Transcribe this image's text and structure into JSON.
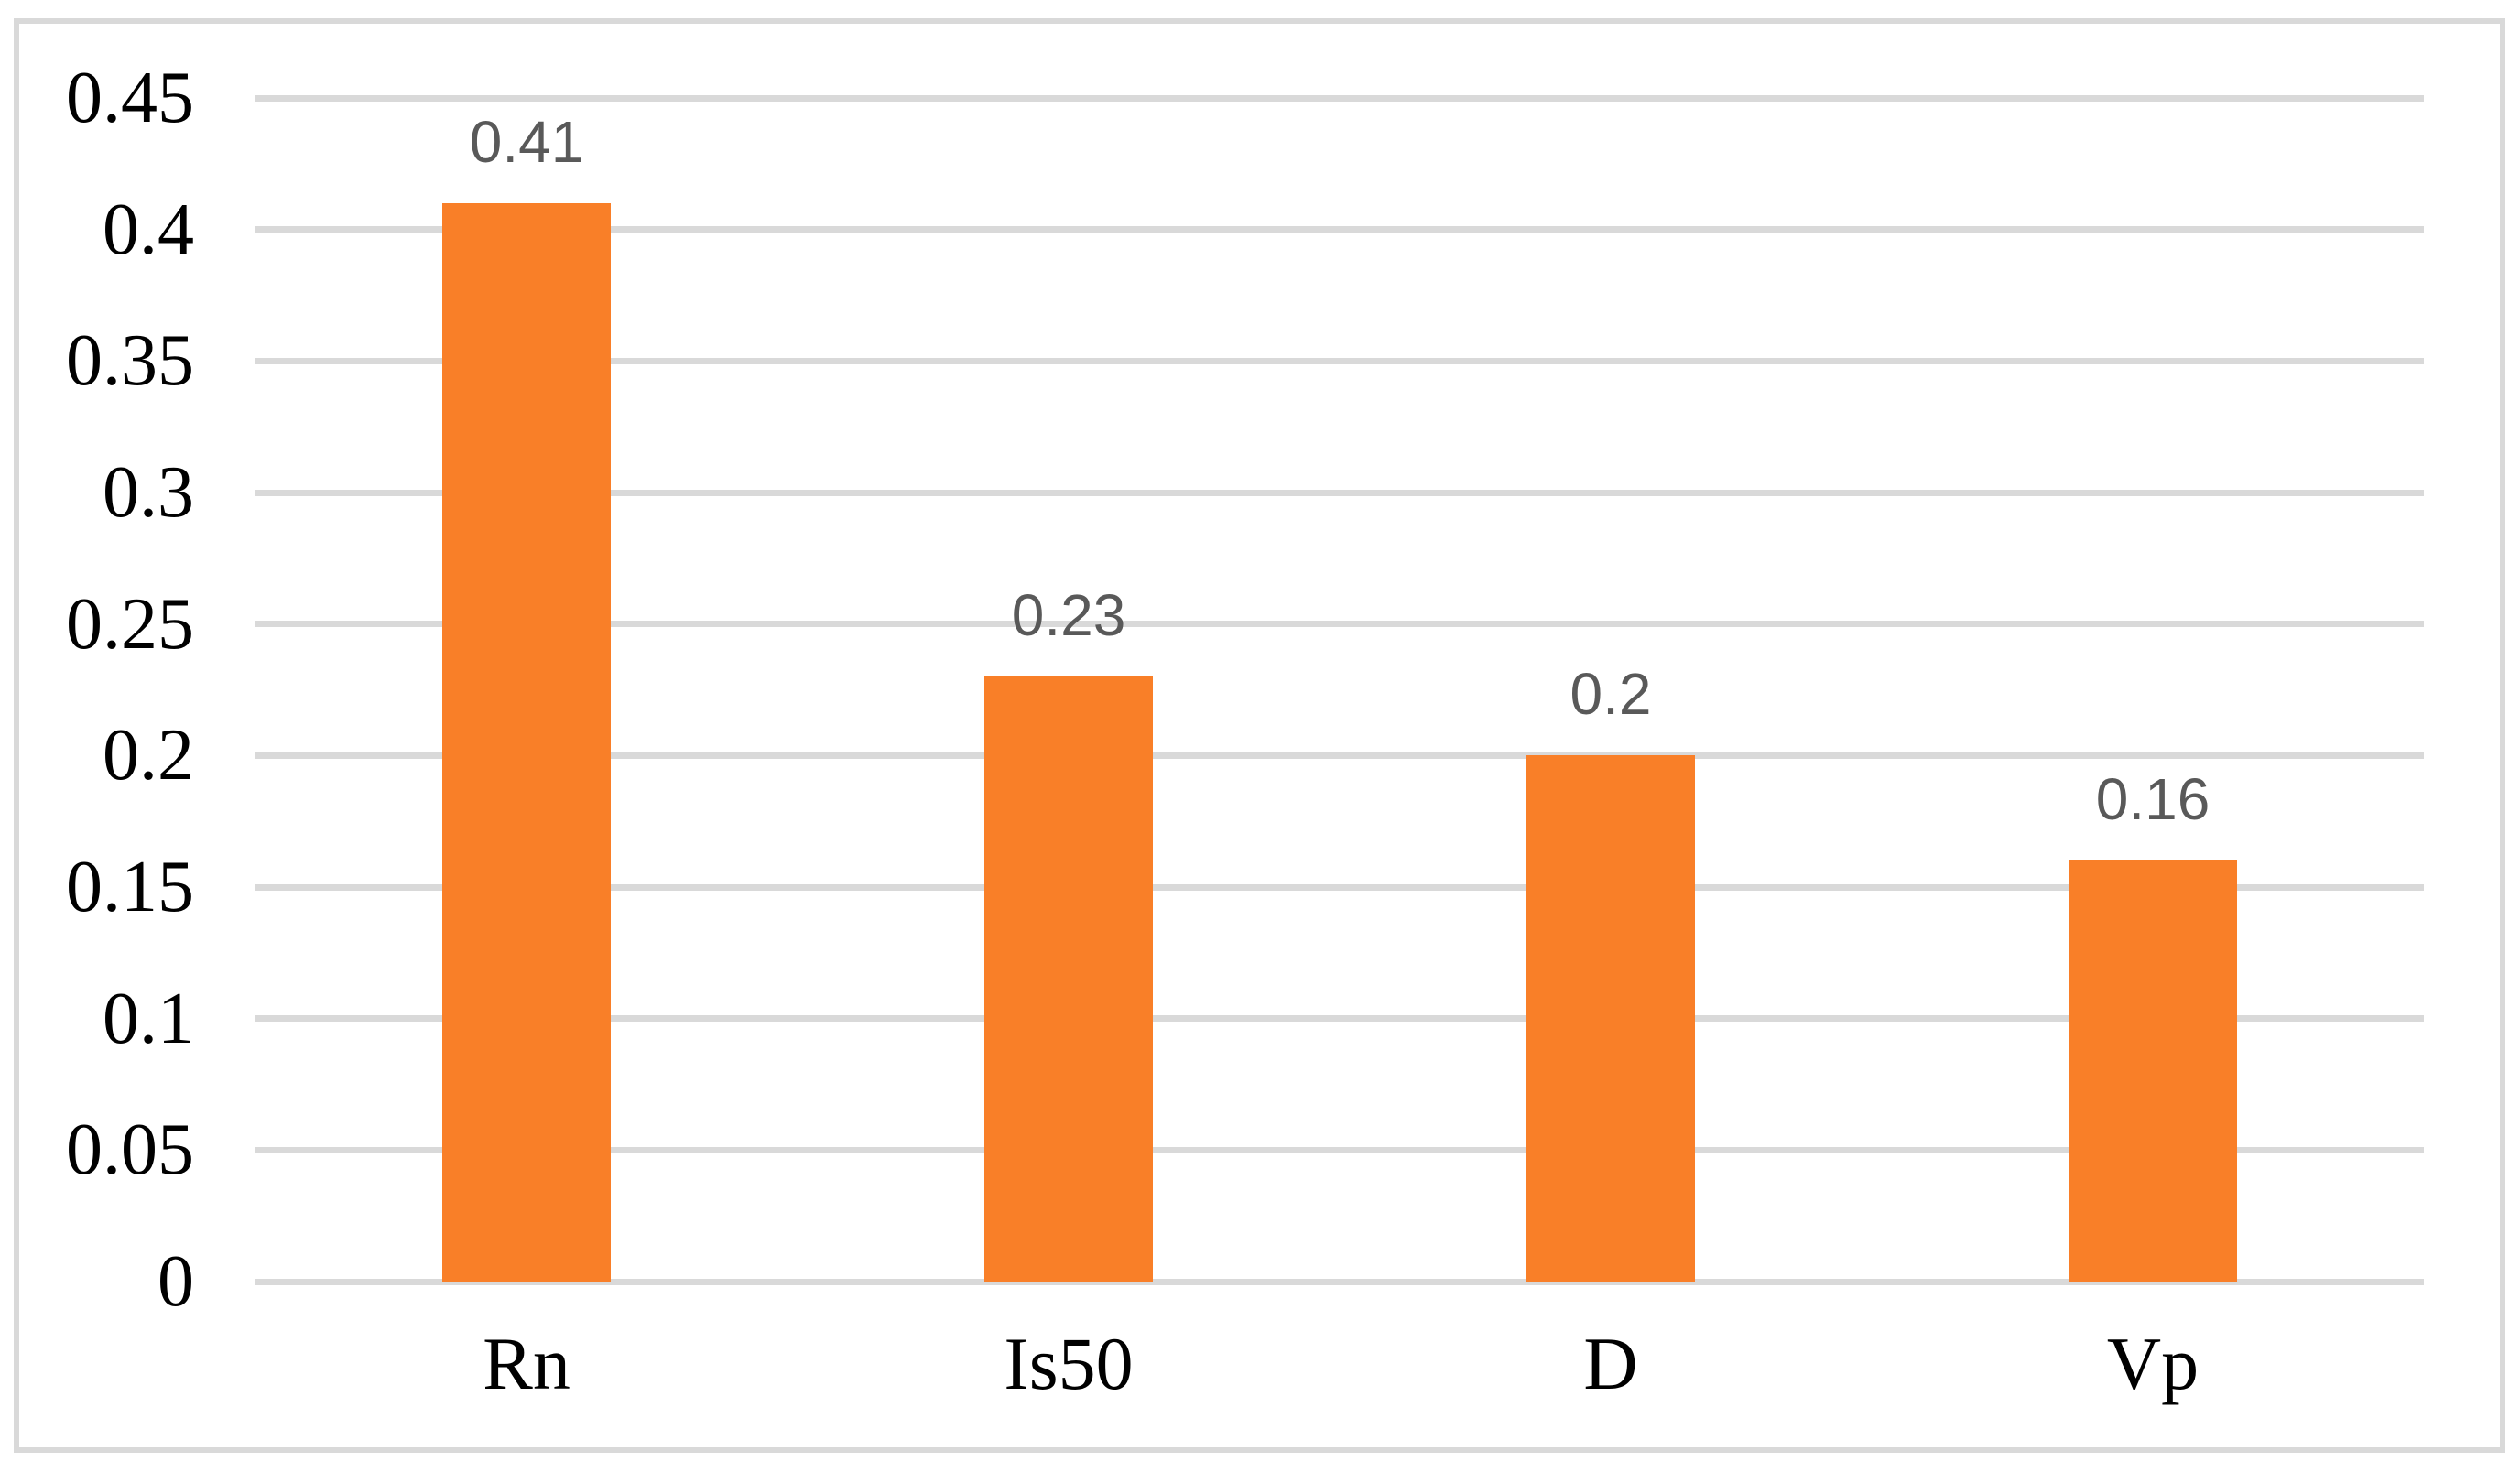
{
  "figure": {
    "background": "#FFFFFF",
    "frame_border_color": "#D9D9D9"
  },
  "chart_data": {
    "type": "bar",
    "title": "",
    "xlabel": "",
    "ylabel": "",
    "categories": [
      "Rn",
      "Is50",
      "D",
      "Vp"
    ],
    "values": [
      0.41,
      0.23,
      0.2,
      0.16
    ],
    "data_labels": [
      "0.41",
      "0.23",
      "0.2",
      "0.16"
    ],
    "ylim": [
      0,
      0.45
    ],
    "ytick_step": 0.05,
    "ytick_labels": [
      "0.45",
      "0.4",
      "0.35",
      "0.3",
      "0.25",
      "0.2",
      "0.15",
      "0.1",
      "0.05",
      "0"
    ],
    "grid": true,
    "legend": "none",
    "bar_color": "#F97F28",
    "gridline_color": "#D9D9D9",
    "data_label_color": "#595959",
    "axis_text_color": "#000000"
  }
}
